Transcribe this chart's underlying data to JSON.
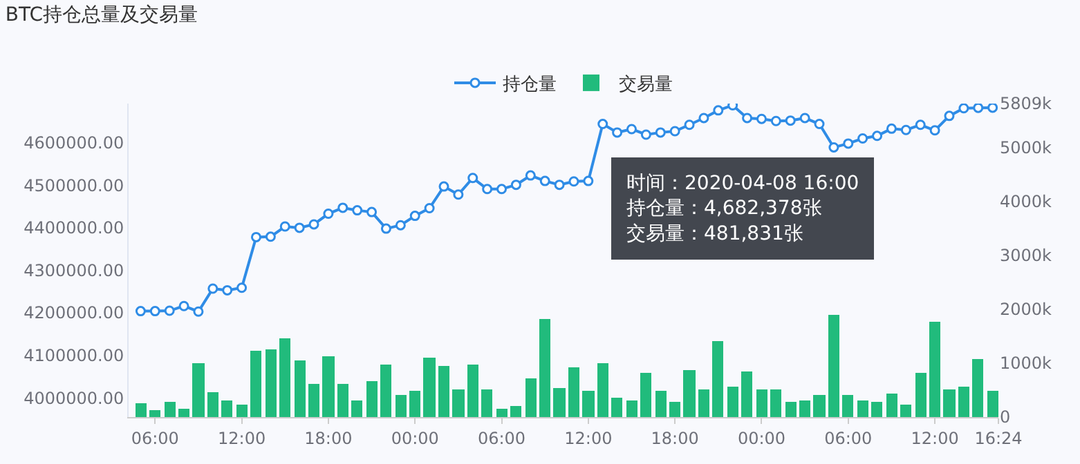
{
  "chart_data": {
    "type": "line",
    "title": "BTC持仓总量及交易量",
    "x": [
      "2020-04-06T05:00",
      "2020-04-06T06:00",
      "2020-04-06T07:00",
      "2020-04-06T08:00",
      "2020-04-06T09:00",
      "2020-04-06T10:00",
      "2020-04-06T11:00",
      "2020-04-06T12:00",
      "2020-04-06T13:00",
      "2020-04-06T14:00",
      "2020-04-06T15:00",
      "2020-04-06T16:00",
      "2020-04-06T17:00",
      "2020-04-06T18:00",
      "2020-04-06T19:00",
      "2020-04-06T20:00",
      "2020-04-06T21:00",
      "2020-04-06T22:00",
      "2020-04-06T23:00",
      "2020-04-07T00:00",
      "2020-04-07T01:00",
      "2020-04-07T02:00",
      "2020-04-07T03:00",
      "2020-04-07T04:00",
      "2020-04-07T05:00",
      "2020-04-07T06:00",
      "2020-04-07T07:00",
      "2020-04-07T08:00",
      "2020-04-07T09:00",
      "2020-04-07T10:00",
      "2020-04-07T11:00",
      "2020-04-07T12:00",
      "2020-04-07T13:00",
      "2020-04-07T14:00",
      "2020-04-07T15:00",
      "2020-04-07T16:00",
      "2020-04-07T17:00",
      "2020-04-07T18:00",
      "2020-04-07T19:00",
      "2020-04-07T20:00",
      "2020-04-07T21:00",
      "2020-04-07T22:00",
      "2020-04-07T23:00",
      "2020-04-08T00:00",
      "2020-04-08T01:00",
      "2020-04-08T02:00",
      "2020-04-08T03:00",
      "2020-04-08T04:00",
      "2020-04-08T05:00",
      "2020-04-08T06:00",
      "2020-04-08T07:00",
      "2020-04-08T08:00",
      "2020-04-08T09:00",
      "2020-04-08T10:00",
      "2020-04-08T11:00",
      "2020-04-08T12:00",
      "2020-04-08T13:00",
      "2020-04-08T14:00",
      "2020-04-08T15:00",
      "2020-04-08T16:00"
    ],
    "series": [
      {
        "name": "持仓量",
        "color": "#2f8ce6",
        "values": [
          4204000,
          4204000,
          4205000,
          4216000,
          4203000,
          4257000,
          4253000,
          4259000,
          4378000,
          4379000,
          4403000,
          4400000,
          4408000,
          4433000,
          4447000,
          4441000,
          4437000,
          4398000,
          4406000,
          4428000,
          4446000,
          4497000,
          4478000,
          4517000,
          4491000,
          4491000,
          4501000,
          4523000,
          4510000,
          4501000,
          4509000,
          4510000,
          4644000,
          4624000,
          4632000,
          4619000,
          4624000,
          4627000,
          4642000,
          4658000,
          4676000,
          4688000,
          4658000,
          4656000,
          4651000,
          4652000,
          4658000,
          4644000,
          4589000,
          4598000,
          4610000,
          4616000,
          4633000,
          4630000,
          4642000,
          4629000,
          4663000,
          4681000,
          4682000,
          4682378
        ]
      },
      {
        "name": "交易量",
        "type": "bar",
        "axis": "y2",
        "color": "#21bb7c",
        "values": [
          262000,
          120000,
          278000,
          154000,
          1002000,
          461000,
          320000,
          237000,
          1218000,
          1259000,
          1467000,
          1060000,
          603000,
          1135000,
          619000,
          312000,
          678000,
          985000,
          420000,
          486000,
          1101000,
          952000,
          503000,
          985000,
          511000,
          162000,
          212000,
          711000,
          1808000,
          536000,
          927000,
          494000,
          1002000,
          369000,
          312000,
          828000,
          494000,
          287000,
          860000,
          519000,
          1402000,
          569000,
          843000,
          511000,
          511000,
          279000,
          312000,
          420000,
          1900000,
          420000,
          312000,
          279000,
          429000,
          220000,
          828000,
          1758000,
          519000,
          569000,
          1068000,
          481831
        ]
      }
    ],
    "marker": "circle",
    "legend": "top",
    "grid": false,
    "xlim": [
      "2020-04-06T04:10",
      "2020-04-08T16:24"
    ],
    "xticks": [
      {
        "value": "2020-04-06T06:00",
        "label": "06:00"
      },
      {
        "value": "2020-04-06T12:00",
        "label": "12:00"
      },
      {
        "value": "2020-04-06T18:00",
        "label": "18:00"
      },
      {
        "value": "2020-04-07T00:00",
        "label": "00:00"
      },
      {
        "value": "2020-04-07T06:00",
        "label": "06:00"
      },
      {
        "value": "2020-04-07T12:00",
        "label": "12:00"
      },
      {
        "value": "2020-04-07T18:00",
        "label": "18:00"
      },
      {
        "value": "2020-04-08T00:00",
        "label": "00:00"
      },
      {
        "value": "2020-04-08T06:00",
        "label": "06:00"
      },
      {
        "value": "2020-04-08T12:00",
        "label": "12:00"
      },
      {
        "value": "2020-04-08T16:24",
        "label": "16:24"
      }
    ],
    "ylim": [
      3955000,
      4692000
    ],
    "yticks": [
      {
        "value": 4000000,
        "label": "4000000.00"
      },
      {
        "value": 4100000,
        "label": "4100000.00"
      },
      {
        "value": 4200000,
        "label": "4200000.00"
      },
      {
        "value": 4300000,
        "label": "4300000.00"
      },
      {
        "value": 4400000,
        "label": "4400000.00"
      },
      {
        "value": 4500000,
        "label": "4500000.00"
      },
      {
        "value": 4600000,
        "label": "4600000.00"
      }
    ],
    "y2lim": [
      0,
      5809000
    ],
    "y2ticks": [
      0,
      {
        "value": 1000000,
        "label": "1000k"
      },
      {
        "value": 2000000,
        "label": "2000k"
      },
      {
        "value": 3000000,
        "label": "3000k"
      },
      {
        "value": 4000000,
        "label": "4000k"
      },
      {
        "value": 5000000,
        "label": "5000k"
      },
      {
        "value": 5809000,
        "label": "5809k"
      }
    ],
    "annotations": [
      "时间：2020-04-08 16:00",
      "持仓量：4,682,378张",
      "交易量：481,831张"
    ]
  }
}
